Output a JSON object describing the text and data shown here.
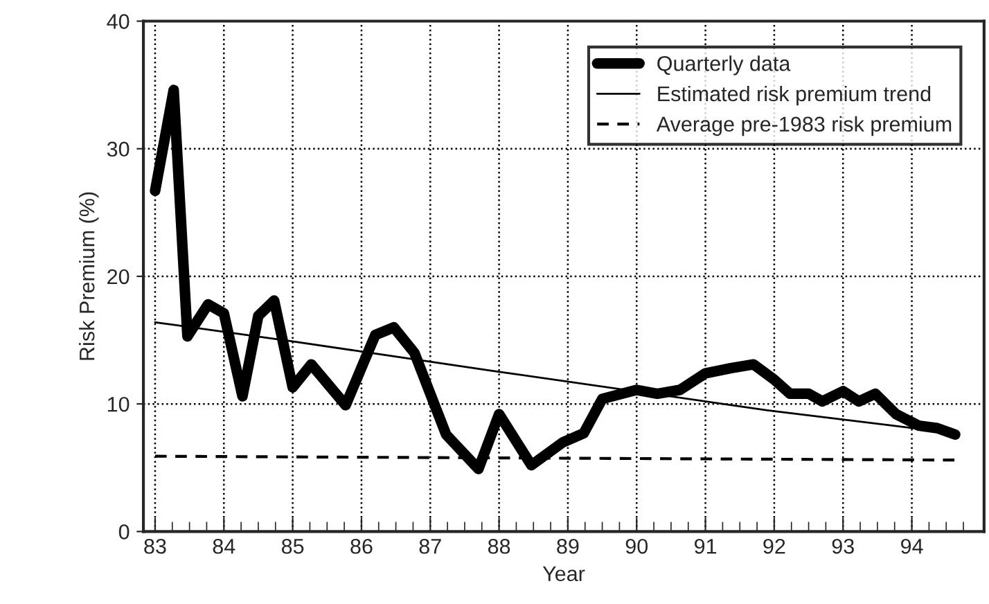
{
  "chart_data": {
    "type": "line",
    "xlabel": "Year",
    "ylabel": "Risk Premium (%)",
    "xlim": [
      82.83,
      95.05
    ],
    "xticks": [
      83,
      84,
      85,
      86,
      87,
      88,
      89,
      90,
      91,
      92,
      93,
      94
    ],
    "ylim": [
      0,
      40
    ],
    "yticks": [
      0,
      10,
      20,
      30,
      40
    ],
    "grid": true,
    "legend": "top right",
    "series": [
      {
        "name": "Quarterly data",
        "color": "#000000",
        "line_style": "solid",
        "x": [
          83.0,
          83.27,
          83.47,
          83.77,
          84.0,
          84.27,
          84.5,
          84.73,
          85.0,
          85.27,
          85.77,
          86.2,
          86.47,
          86.77,
          87.0,
          87.23,
          87.7,
          88.0,
          88.47,
          88.93,
          89.23,
          89.5,
          90.0,
          90.3,
          90.63,
          91.0,
          91.37,
          91.7,
          92.0,
          92.23,
          92.5,
          92.7,
          93.0,
          93.23,
          93.47,
          93.77,
          94.1,
          94.37,
          94.63
        ],
        "values": [
          26.7,
          34.6,
          15.3,
          17.8,
          17.1,
          10.6,
          16.9,
          18.1,
          11.3,
          13.1,
          9.9,
          15.4,
          16.0,
          14.0,
          10.8,
          7.6,
          4.9,
          9.2,
          5.2,
          7.0,
          7.7,
          10.4,
          11.1,
          10.8,
          11.1,
          12.4,
          12.8,
          13.1,
          11.9,
          10.8,
          10.8,
          10.2,
          11.0,
          10.2,
          10.8,
          9.2,
          8.3,
          8.1,
          7.6
        ]
      },
      {
        "name": "Estimated risk premium trend",
        "color": "#000000",
        "line_style": "solid",
        "x": [
          83.0,
          85.0,
          87.9,
          91.9,
          94.63
        ],
        "values": [
          16.4,
          14.9,
          12.6,
          9.5,
          7.7
        ]
      },
      {
        "name": "Average pre-1983 risk premium",
        "color": "#000000",
        "line_style": "dashed",
        "x": [
          83.0,
          94.63
        ],
        "values": [
          5.9,
          5.6
        ]
      }
    ]
  }
}
